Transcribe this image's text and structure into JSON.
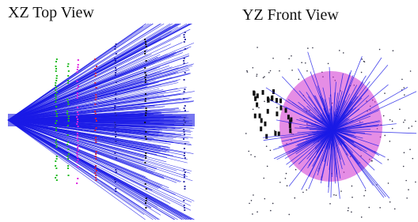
{
  "panels": [
    {
      "title": "XZ Top View"
    },
    {
      "title": "YZ Front View"
    }
  ]
}
